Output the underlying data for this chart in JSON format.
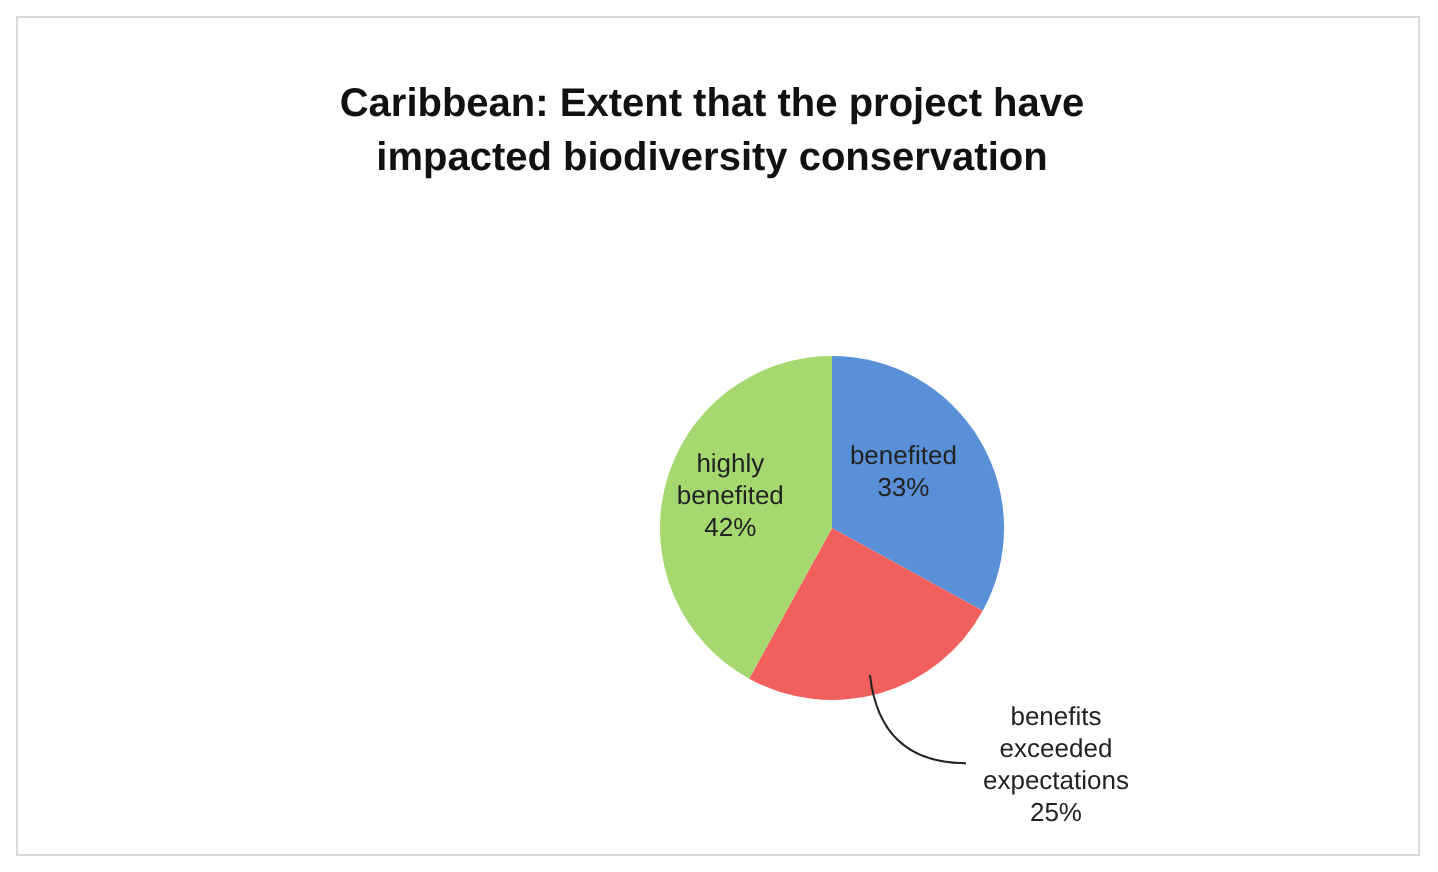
{
  "chart_data": {
    "type": "pie",
    "title": "Caribbean: Extent that the project have impacted biodiversity conservation",
    "categories": [
      "benefited",
      "benefits exceeded expectations",
      "highly benefited"
    ],
    "values": [
      33,
      25,
      42
    ],
    "colors": [
      "#5a90d8",
      "#f2605e",
      "#a6d870"
    ],
    "value_labels": [
      "33%",
      "25%",
      "42%"
    ],
    "legend": false
  }
}
